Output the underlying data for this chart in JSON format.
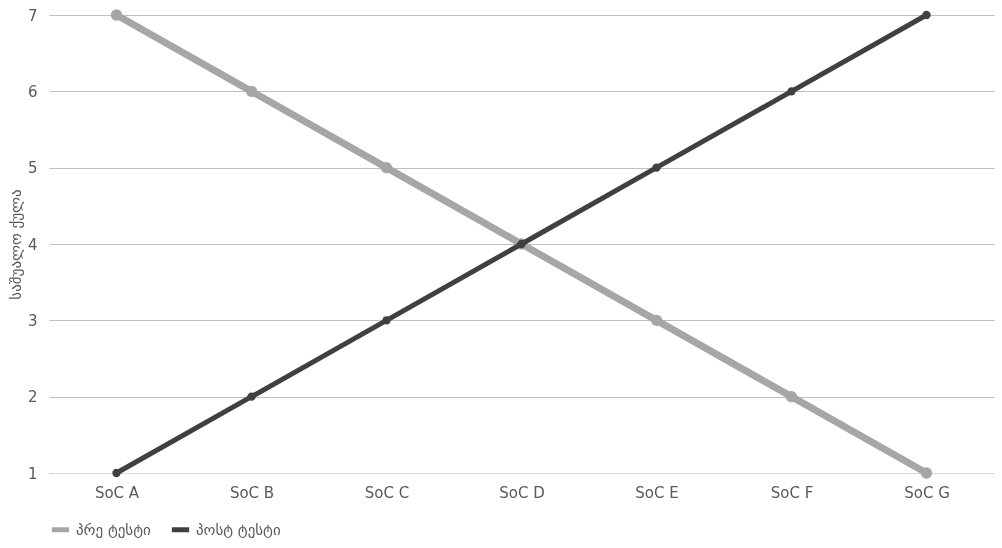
{
  "chart_data": {
    "type": "line",
    "ylabel": "საშუალო ქულა",
    "categories": [
      "SoC A",
      "SoC B",
      "SoC C",
      "SoC D",
      "SoC E",
      "SoC F",
      "SoC G"
    ],
    "series": [
      {
        "name": "პრე ტესტი",
        "color": "#a6a6a6",
        "values": [
          7,
          6,
          5,
          4,
          3,
          2,
          1
        ]
      },
      {
        "name": "პოსტ ტესტი",
        "color": "#404040",
        "values": [
          1,
          2,
          3,
          4,
          5,
          6,
          7
        ]
      }
    ],
    "ylim": [
      1,
      7
    ],
    "yticks": [
      1,
      2,
      3,
      4,
      5,
      6,
      7
    ],
    "grid": "y",
    "legend": "bottom",
    "marker": "circle",
    "line_style": "solid"
  }
}
